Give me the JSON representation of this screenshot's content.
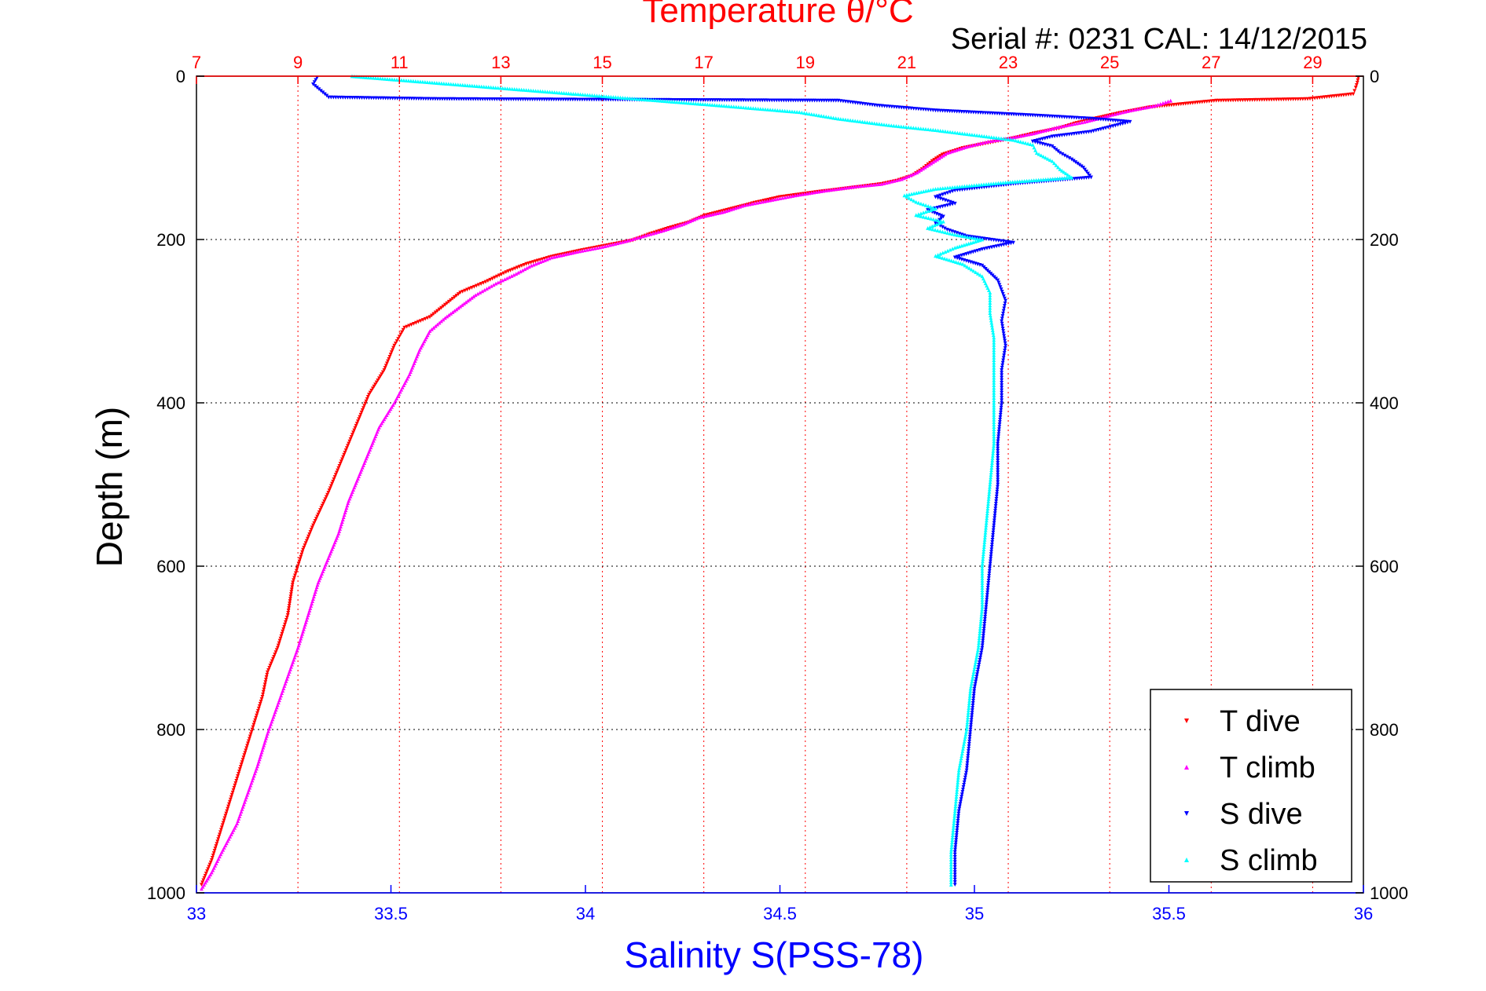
{
  "chart_data": {
    "type": "scatter",
    "title": "Temperature θ/°C",
    "subtitle": "Serial #: 0231  CAL: 14/12/2015",
    "xlabel": "Salinity S(PSS-78)",
    "ylabel": "Depth (m)",
    "x_bottom": {
      "label": "Salinity S(PSS-78)",
      "lim": [
        33,
        36
      ],
      "ticks": [
        "33",
        "33.5",
        "34",
        "34.5",
        "35",
        "35.5",
        "36"
      ],
      "color": "#0000ff"
    },
    "x_top": {
      "label": "Temperature θ/°C",
      "lim": [
        7,
        30
      ],
      "ticks": [
        "7",
        "9",
        "11",
        "13",
        "15",
        "17",
        "19",
        "21",
        "23",
        "25",
        "27",
        "29"
      ],
      "color": "#ff0000"
    },
    "y": {
      "label": "Depth (m)",
      "lim": [
        0,
        1000
      ],
      "reversed": true,
      "ticks": [
        "0",
        "200",
        "400",
        "600",
        "800",
        "1000"
      ]
    },
    "grid": true,
    "legend_position": "bottom-right",
    "series": [
      {
        "name": "T dive",
        "axis": "temperature",
        "color": "#ff0000",
        "marker": "triangle-down",
        "points": [
          [
            29.9,
            2
          ],
          [
            29.88,
            8
          ],
          [
            29.85,
            14
          ],
          [
            29.8,
            22
          ],
          [
            28.9,
            28
          ],
          [
            27.1,
            30
          ],
          [
            25.8,
            38
          ],
          [
            25.2,
            45
          ],
          [
            24.7,
            52
          ],
          [
            24.3,
            58
          ],
          [
            24.0,
            64
          ],
          [
            23.5,
            70
          ],
          [
            23.1,
            76
          ],
          [
            22.6,
            82
          ],
          [
            22.1,
            88
          ],
          [
            21.7,
            96
          ],
          [
            21.5,
            104
          ],
          [
            21.3,
            114
          ],
          [
            21.1,
            122
          ],
          [
            20.8,
            128
          ],
          [
            20.5,
            132
          ],
          [
            20.0,
            136
          ],
          [
            19.2,
            142
          ],
          [
            18.5,
            148
          ],
          [
            18.0,
            155
          ],
          [
            17.5,
            163
          ],
          [
            17.0,
            171
          ],
          [
            16.7,
            179
          ],
          [
            16.3,
            186
          ],
          [
            15.9,
            194
          ],
          [
            15.6,
            201
          ],
          [
            15.1,
            207
          ],
          [
            14.6,
            213
          ],
          [
            14.0,
            221
          ],
          [
            13.5,
            230
          ],
          [
            13.1,
            240
          ],
          [
            12.7,
            252
          ],
          [
            12.2,
            265
          ],
          [
            11.9,
            280
          ],
          [
            11.6,
            295
          ],
          [
            11.1,
            308
          ],
          [
            10.9,
            330
          ],
          [
            10.7,
            360
          ],
          [
            10.4,
            390
          ],
          [
            10.2,
            420
          ],
          [
            10.0,
            450
          ],
          [
            9.8,
            480
          ],
          [
            9.6,
            510
          ],
          [
            9.3,
            550
          ],
          [
            9.1,
            580
          ],
          [
            8.9,
            620
          ],
          [
            8.8,
            660
          ],
          [
            8.6,
            700
          ],
          [
            8.4,
            730
          ],
          [
            8.3,
            760
          ],
          [
            8.1,
            800
          ],
          [
            7.9,
            840
          ],
          [
            7.7,
            880
          ],
          [
            7.5,
            920
          ],
          [
            7.3,
            960
          ],
          [
            7.1,
            990
          ]
        ]
      },
      {
        "name": "T climb",
        "axis": "temperature",
        "color": "#ff00ff",
        "marker": "triangle-up",
        "points": [
          [
            26.2,
            30
          ],
          [
            25.9,
            36
          ],
          [
            25.4,
            42
          ],
          [
            25.0,
            48
          ],
          [
            24.5,
            56
          ],
          [
            24.0,
            62
          ],
          [
            23.5,
            70
          ],
          [
            23.0,
            76
          ],
          [
            22.6,
            80
          ],
          [
            22.2,
            86
          ],
          [
            21.8,
            94
          ],
          [
            21.6,
            102
          ],
          [
            21.4,
            110
          ],
          [
            21.2,
            118
          ],
          [
            20.9,
            126
          ],
          [
            20.5,
            132
          ],
          [
            20.0,
            135
          ],
          [
            19.4,
            140
          ],
          [
            18.8,
            146
          ],
          [
            18.3,
            152
          ],
          [
            17.8,
            158
          ],
          [
            17.4,
            166
          ],
          [
            16.9,
            173
          ],
          [
            16.6,
            181
          ],
          [
            16.2,
            189
          ],
          [
            15.8,
            196
          ],
          [
            15.4,
            203
          ],
          [
            15.0,
            209
          ],
          [
            14.5,
            215
          ],
          [
            14.0,
            222
          ],
          [
            13.6,
            232
          ],
          [
            13.3,
            242
          ],
          [
            12.9,
            254
          ],
          [
            12.5,
            268
          ],
          [
            12.2,
            282
          ],
          [
            11.9,
            296
          ],
          [
            11.6,
            312
          ],
          [
            11.4,
            335
          ],
          [
            11.2,
            365
          ],
          [
            10.9,
            400
          ],
          [
            10.6,
            430
          ],
          [
            10.4,
            460
          ],
          [
            10.2,
            490
          ],
          [
            10.0,
            520
          ],
          [
            9.8,
            560
          ],
          [
            9.6,
            590
          ],
          [
            9.4,
            620
          ],
          [
            9.2,
            660
          ],
          [
            9.0,
            700
          ],
          [
            8.8,
            735
          ],
          [
            8.6,
            770
          ],
          [
            8.4,
            805
          ],
          [
            8.2,
            845
          ],
          [
            8.0,
            880
          ],
          [
            7.8,
            915
          ],
          [
            7.5,
            950
          ],
          [
            7.3,
            975
          ],
          [
            7.1,
            995
          ]
        ]
      },
      {
        "name": "S dive",
        "axis": "salinity",
        "color": "#0000ff",
        "marker": "triangle-down",
        "points": [
          [
            33.31,
            2
          ],
          [
            33.3,
            10
          ],
          [
            33.32,
            18
          ],
          [
            33.34,
            26
          ],
          [
            33.62,
            28
          ],
          [
            34.65,
            30
          ],
          [
            34.75,
            36
          ],
          [
            34.9,
            42
          ],
          [
            35.15,
            48
          ],
          [
            35.3,
            52
          ],
          [
            35.4,
            56
          ],
          [
            35.35,
            62
          ],
          [
            35.3,
            68
          ],
          [
            35.2,
            74
          ],
          [
            35.15,
            80
          ],
          [
            35.2,
            86
          ],
          [
            35.22,
            94
          ],
          [
            35.25,
            102
          ],
          [
            35.28,
            112
          ],
          [
            35.3,
            124
          ],
          [
            35.1,
            132
          ],
          [
            34.95,
            140
          ],
          [
            34.9,
            148
          ],
          [
            34.95,
            156
          ],
          [
            34.88,
            164
          ],
          [
            34.92,
            172
          ],
          [
            34.9,
            180
          ],
          [
            34.93,
            188
          ],
          [
            34.98,
            196
          ],
          [
            35.1,
            204
          ],
          [
            35.02,
            212
          ],
          [
            34.95,
            222
          ],
          [
            35.02,
            232
          ],
          [
            35.06,
            250
          ],
          [
            35.08,
            275
          ],
          [
            35.07,
            300
          ],
          [
            35.08,
            330
          ],
          [
            35.07,
            360
          ],
          [
            35.07,
            400
          ],
          [
            35.06,
            450
          ],
          [
            35.06,
            500
          ],
          [
            35.05,
            550
          ],
          [
            35.04,
            600
          ],
          [
            35.03,
            650
          ],
          [
            35.02,
            700
          ],
          [
            35.0,
            750
          ],
          [
            34.99,
            800
          ],
          [
            34.98,
            850
          ],
          [
            34.96,
            900
          ],
          [
            34.95,
            950
          ],
          [
            34.95,
            990
          ]
        ]
      },
      {
        "name": "S climb",
        "axis": "salinity",
        "color": "#00ffff",
        "marker": "triangle-up",
        "points": [
          [
            33.4,
            0
          ],
          [
            34.35,
            36
          ],
          [
            34.45,
            40
          ],
          [
            34.55,
            44
          ],
          [
            34.65,
            52
          ],
          [
            34.78,
            60
          ],
          [
            34.9,
            66
          ],
          [
            35.0,
            72
          ],
          [
            35.1,
            78
          ],
          [
            35.15,
            84
          ],
          [
            35.16,
            94
          ],
          [
            35.2,
            104
          ],
          [
            35.22,
            114
          ],
          [
            35.25,
            124
          ],
          [
            35.08,
            130
          ],
          [
            34.9,
            138
          ],
          [
            34.82,
            146
          ],
          [
            34.85,
            154
          ],
          [
            34.9,
            162
          ],
          [
            34.85,
            170
          ],
          [
            34.92,
            178
          ],
          [
            34.88,
            186
          ],
          [
            34.95,
            194
          ],
          [
            35.02,
            200
          ],
          [
            34.95,
            210
          ],
          [
            34.9,
            220
          ],
          [
            34.97,
            230
          ],
          [
            35.02,
            245
          ],
          [
            35.04,
            265
          ],
          [
            35.04,
            290
          ],
          [
            35.05,
            320
          ],
          [
            35.05,
            360
          ],
          [
            35.05,
            400
          ],
          [
            35.05,
            450
          ],
          [
            35.04,
            500
          ],
          [
            35.03,
            550
          ],
          [
            35.02,
            600
          ],
          [
            35.02,
            650
          ],
          [
            35.01,
            700
          ],
          [
            34.99,
            750
          ],
          [
            34.98,
            800
          ],
          [
            34.96,
            850
          ],
          [
            34.95,
            900
          ],
          [
            34.94,
            950
          ],
          [
            34.94,
            990
          ]
        ]
      }
    ]
  }
}
